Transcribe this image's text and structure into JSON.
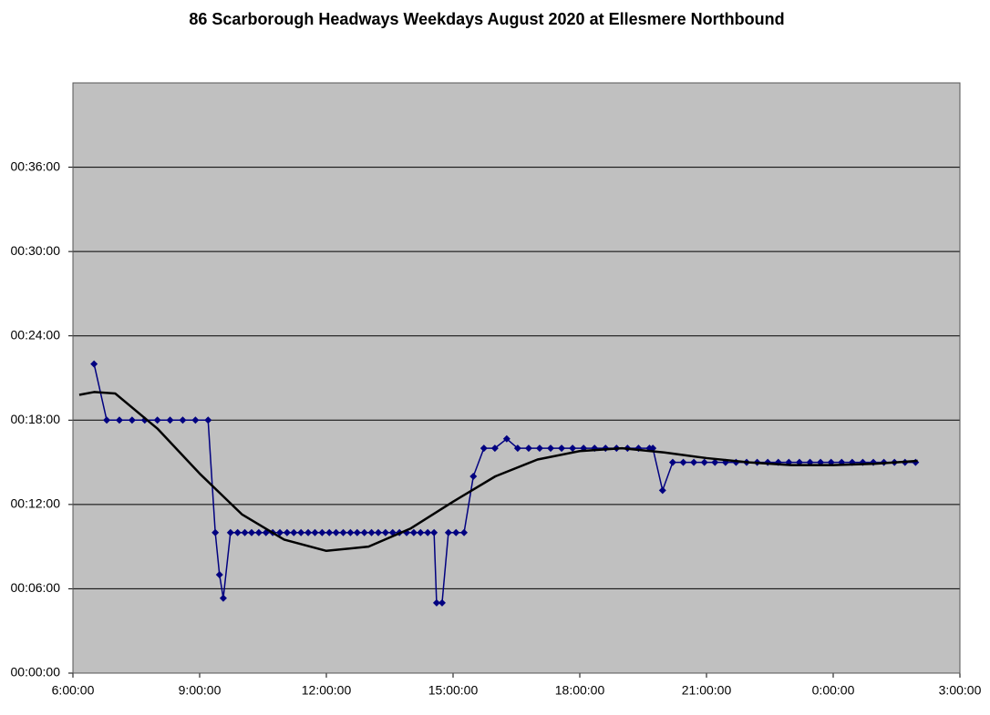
{
  "chart_data": {
    "type": "line",
    "title": "86 Scarborough Headways Weekdays August 2020 at Ellesmere Northbound",
    "xlim": [
      6,
      27
    ],
    "xticks": [
      {
        "value": 6,
        "label": "6:00:00"
      },
      {
        "value": 9,
        "label": "9:00:00"
      },
      {
        "value": 12,
        "label": "12:00:00"
      },
      {
        "value": 15,
        "label": "15:00:00"
      },
      {
        "value": 18,
        "label": "18:00:00"
      },
      {
        "value": 21,
        "label": "21:00:00"
      },
      {
        "value": 24,
        "label": "0:00:00"
      },
      {
        "value": 27,
        "label": "3:00:00"
      }
    ],
    "ylim": [
      0,
      42
    ],
    "yticks": [
      {
        "value": 0,
        "label": "00:00:00"
      },
      {
        "value": 6,
        "label": "00:06:00"
      },
      {
        "value": 12,
        "label": "00:12:00"
      },
      {
        "value": 18,
        "label": "00:18:00"
      },
      {
        "value": 24,
        "label": "00:24:00"
      },
      {
        "value": 30,
        "label": "00:30:00"
      },
      {
        "value": 36,
        "label": "00:36:00"
      }
    ],
    "grid": true,
    "plot_background": "#c0c0c0",
    "series": [
      {
        "color": "#000080",
        "marker": "diamond",
        "line_width": 1.5,
        "x": [
          6.5,
          6.8,
          7.1,
          7.4,
          7.7,
          8.0,
          8.3,
          8.6,
          8.9,
          9.2,
          9.37,
          9.47,
          9.56,
          9.73,
          9.9,
          10.07,
          10.23,
          10.4,
          10.57,
          10.73,
          10.9,
          11.07,
          11.23,
          11.4,
          11.57,
          11.73,
          11.9,
          12.07,
          12.23,
          12.4,
          12.57,
          12.73,
          12.9,
          13.07,
          13.23,
          13.4,
          13.57,
          13.73,
          13.9,
          14.07,
          14.23,
          14.4,
          14.55,
          14.61,
          14.74,
          14.89,
          15.07,
          15.26,
          15.48,
          15.73,
          15.99,
          16.27,
          16.53,
          16.79,
          17.05,
          17.31,
          17.57,
          17.83,
          18.09,
          18.35,
          18.61,
          18.87,
          19.13,
          19.39,
          19.65,
          19.73,
          19.96,
          20.2,
          20.45,
          20.7,
          20.95,
          21.2,
          21.45,
          21.7,
          21.95,
          22.2,
          22.45,
          22.7,
          22.95,
          23.2,
          23.45,
          23.7,
          23.95,
          24.2,
          24.45,
          24.7,
          24.95,
          25.2,
          25.45,
          25.7,
          25.95
        ],
        "values": [
          22,
          18,
          18,
          18,
          18,
          18,
          18,
          18,
          18,
          18,
          10,
          7,
          5.33,
          10,
          10,
          10,
          10,
          10,
          10,
          10,
          10,
          10,
          10,
          10,
          10,
          10,
          10,
          10,
          10,
          10,
          10,
          10,
          10,
          10,
          10,
          10,
          10,
          10,
          10,
          10,
          10,
          10,
          10,
          5,
          5,
          10,
          10,
          10,
          14,
          16,
          16,
          16.67,
          16,
          16,
          16,
          16,
          16,
          16,
          16,
          16,
          16,
          16,
          16,
          16,
          16,
          16,
          13,
          15,
          15,
          15,
          15,
          15,
          15,
          15,
          15,
          15,
          15,
          15,
          15,
          15,
          15,
          15,
          15,
          15,
          15,
          15,
          15,
          15,
          15,
          15,
          15
        ]
      },
      {
        "color": "#000000",
        "marker": "none",
        "line_width": 2.5,
        "x": [
          6.15,
          6.5,
          7,
          8,
          9,
          10,
          11,
          12,
          13,
          14,
          15,
          16,
          17,
          18,
          19,
          20,
          21,
          22,
          23,
          24,
          25,
          26
        ],
        "values": [
          19.8,
          20,
          19.9,
          17.4,
          14.2,
          11.3,
          9.5,
          8.7,
          9.0,
          10.3,
          12.2,
          14,
          15.2,
          15.8,
          16,
          15.7,
          15.3,
          15,
          14.8,
          14.8,
          14.9,
          15.1
        ]
      }
    ]
  }
}
